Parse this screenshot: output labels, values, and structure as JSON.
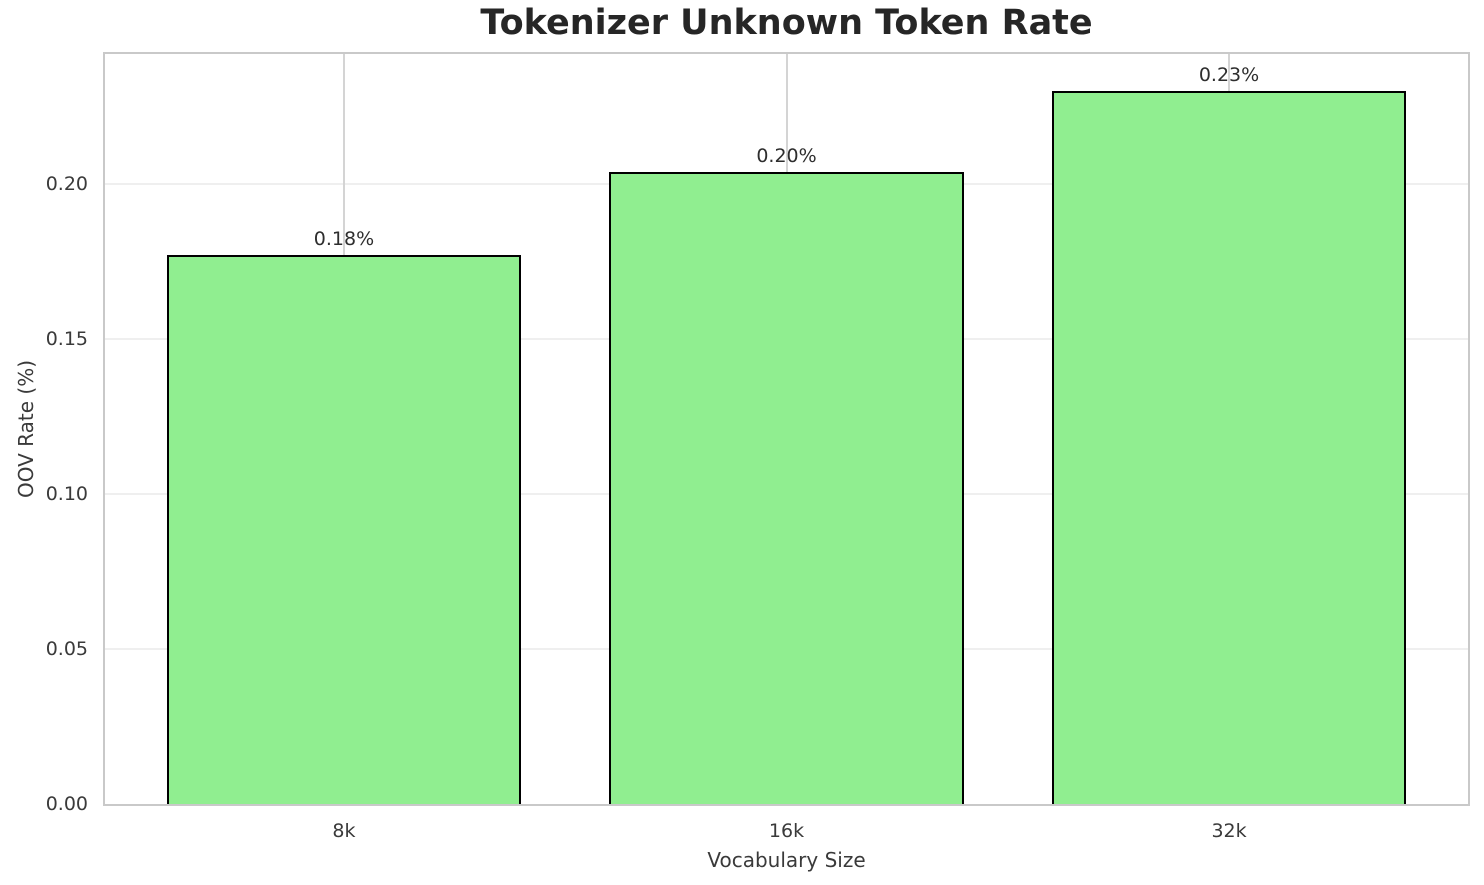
{
  "chart_data": {
    "type": "bar",
    "title": "Tokenizer Unknown Token Rate",
    "xlabel": "Vocabulary Size",
    "ylabel": "OOV Rate (%)",
    "categories": [
      "8k",
      "16k",
      "32k"
    ],
    "values": [
      0.177,
      0.204,
      0.23
    ],
    "bar_labels": [
      "0.18%",
      "0.20%",
      "0.23%"
    ],
    "yticks": [
      0,
      0.05,
      0.1,
      0.15,
      0.2
    ],
    "ytick_labels": [
      "0.00",
      "0.05",
      "0.10",
      "0.15",
      "0.20"
    ],
    "ylim": [
      0,
      0.242
    ],
    "xlim": [
      -0.54,
      2.54
    ],
    "bar_width_units": 0.8,
    "grid": true,
    "legend_position": "none"
  },
  "colors": {
    "background": "#ffffff",
    "bar_fill": "#90EE90",
    "bar_edge": "#000000",
    "grid_horizontal": "#efefef",
    "grid_vertical": "#d4d4d4",
    "spine": "#c9c9c9",
    "title_text": "#262626",
    "tick_text": "#3a3a3a"
  }
}
